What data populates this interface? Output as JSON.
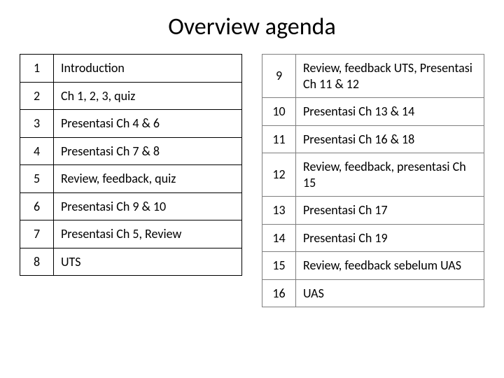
{
  "title": "Overview agenda",
  "colors": {
    "background": "#ffffff",
    "text": "#000000",
    "left_border": "#000000",
    "right_border": "#7f7f7f"
  },
  "typography": {
    "title_fontsize": 34,
    "cell_fontsize": 18,
    "font_family": "Calibri"
  },
  "left_table": {
    "border_color": "#000000",
    "num_col_width": 48,
    "rows": [
      {
        "num": "1",
        "text": "Introduction"
      },
      {
        "num": "2",
        "text": "Ch 1, 2, 3, quiz"
      },
      {
        "num": "3",
        "text": "Presentasi Ch 4 & 6"
      },
      {
        "num": "4",
        "text": "Presentasi Ch 7 & 8"
      },
      {
        "num": "5",
        "text": "Review, feedback, quiz"
      },
      {
        "num": "6",
        "text": "Presentasi Ch 9 & 10"
      },
      {
        "num": "7",
        "text": "Presentasi Ch 5, Review"
      },
      {
        "num": "8",
        "text": "UTS"
      }
    ]
  },
  "right_table": {
    "border_color": "#7f7f7f",
    "num_col_width": 48,
    "rows": [
      {
        "num": "9",
        "text": "Review, feedback UTS, Presentasi Ch 11 & 12"
      },
      {
        "num": "10",
        "text": "Presentasi Ch 13 & 14"
      },
      {
        "num": "11",
        "text": "Presentasi Ch 16 & 18"
      },
      {
        "num": "12",
        "text": "Review, feedback, presentasi Ch 15"
      },
      {
        "num": "13",
        "text": "Presentasi Ch 17"
      },
      {
        "num": "14",
        "text": "Presentasi Ch 19"
      },
      {
        "num": "15",
        "text": "Review, feedback sebelum UAS"
      },
      {
        "num": "16",
        "text": " UAS"
      }
    ]
  }
}
